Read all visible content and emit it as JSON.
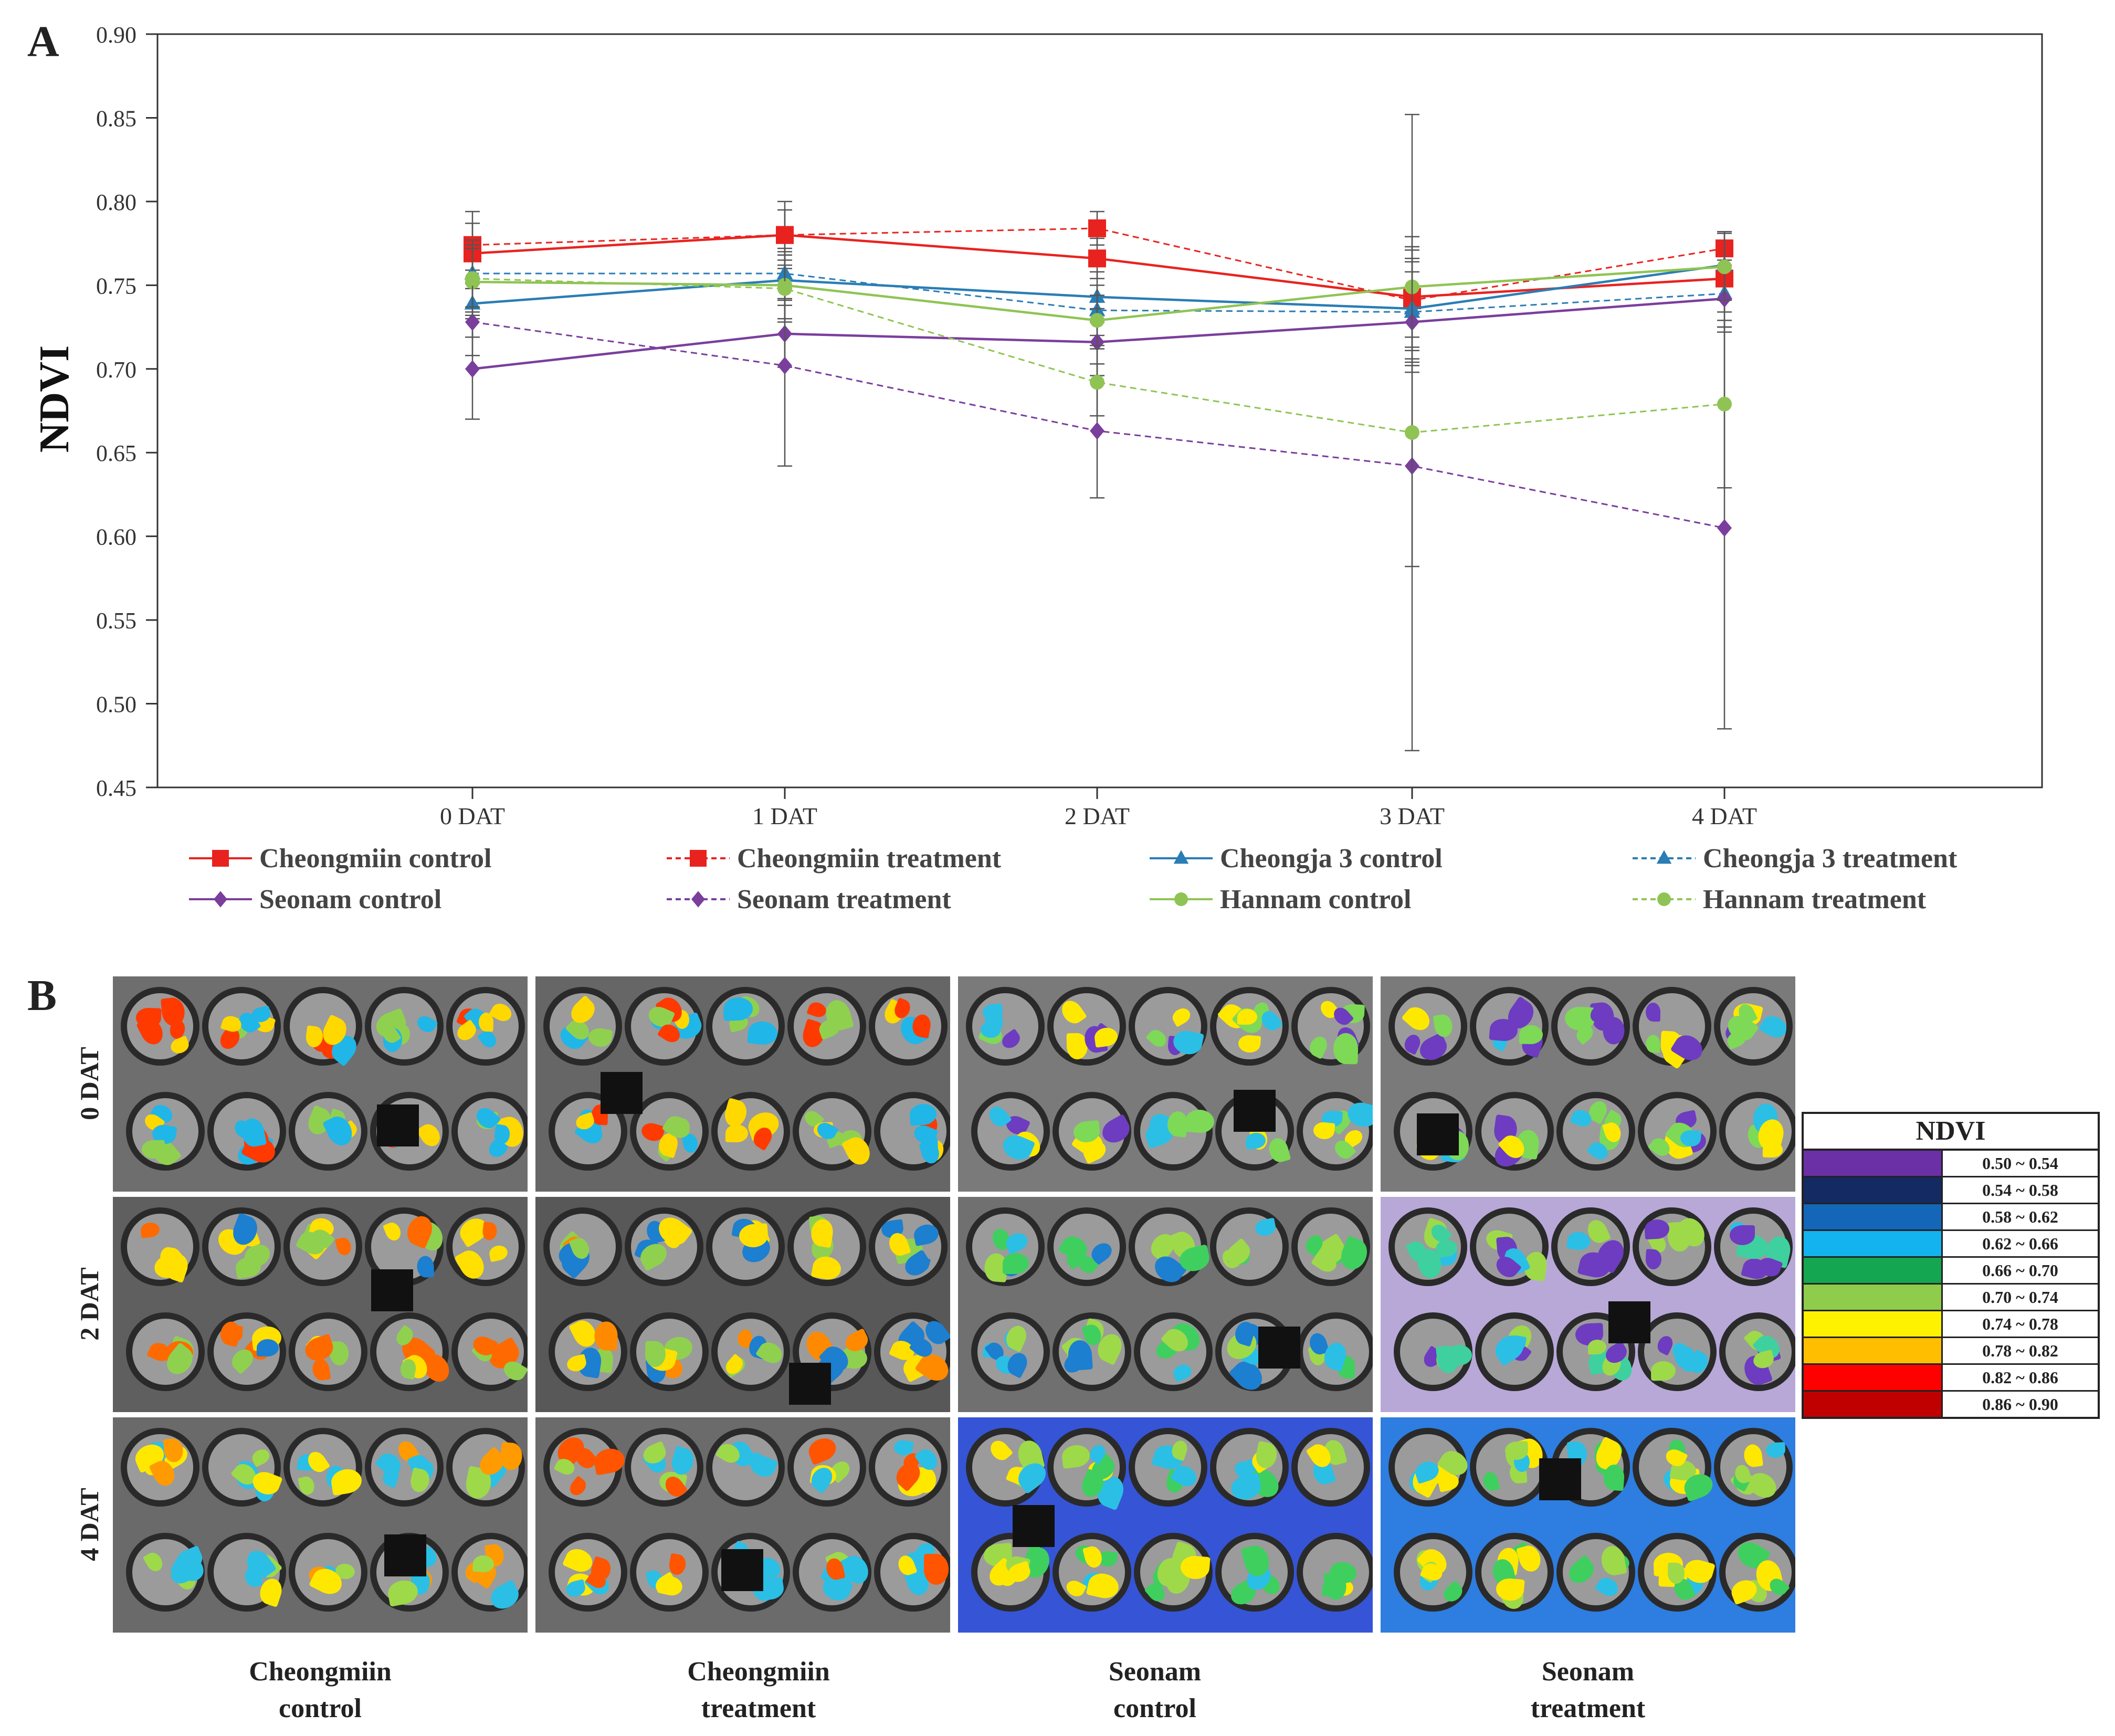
{
  "panels": {
    "a": "A",
    "b": "B"
  },
  "chart_data": {
    "type": "line",
    "title": "",
    "xlabel": "",
    "ylabel": "NDVI",
    "categories": [
      "0 DAT",
      "1 DAT",
      "2 DAT",
      "3 DAT",
      "4 DAT"
    ],
    "ylim": [
      0.45,
      0.9
    ],
    "yticks": [
      "0.45",
      "0.50",
      "0.55",
      "0.60",
      "0.65",
      "0.70",
      "0.75",
      "0.80",
      "0.85",
      "0.90"
    ],
    "series": [
      {
        "name": "Cheongmiin control",
        "color": "#e8231f",
        "dash": false,
        "marker": "square",
        "values": [
          0.769,
          0.78,
          0.766,
          0.743,
          0.754
        ],
        "errors": [
          0.018,
          0.015,
          0.012,
          0.03,
          0.02
        ]
      },
      {
        "name": "Cheongmiin treatment",
        "color": "#e8231f",
        "dash": true,
        "marker": "square",
        "values": [
          0.774,
          0.78,
          0.784,
          0.741,
          0.772
        ],
        "errors": [
          0.02,
          0.02,
          0.01,
          0.03,
          0.01
        ]
      },
      {
        "name": "Cheongja 3 control",
        "color": "#2a7db5",
        "dash": false,
        "marker": "triangle",
        "values": [
          0.739,
          0.753,
          0.743,
          0.736,
          0.762
        ],
        "errors": [
          0.02,
          0.015,
          0.015,
          0.03,
          0.02
        ]
      },
      {
        "name": "Cheongja 3 treatment",
        "color": "#2a7db5",
        "dash": true,
        "marker": "triangle",
        "values": [
          0.757,
          0.757,
          0.735,
          0.734,
          0.745
        ],
        "errors": [
          0.02,
          0.015,
          0.015,
          0.03,
          0.02
        ]
      },
      {
        "name": "Seonam control",
        "color": "#7a3e9d",
        "dash": false,
        "marker": "diamond",
        "values": [
          0.7,
          0.721,
          0.716,
          0.728,
          0.742
        ],
        "errors": [
          0.03,
          0.02,
          0.02,
          0.03,
          0.02
        ]
      },
      {
        "name": "Seonam treatment",
        "color": "#7a3e9d",
        "dash": true,
        "marker": "diamond",
        "values": [
          0.728,
          0.702,
          0.663,
          0.642,
          0.605
        ],
        "errors": [
          0.02,
          0.06,
          0.04,
          0.06,
          0.12
        ]
      },
      {
        "name": "Hannam control",
        "color": "#8fc454",
        "dash": false,
        "marker": "circle",
        "values": [
          0.752,
          0.75,
          0.729,
          0.749,
          0.761
        ],
        "errors": [
          0.02,
          0.02,
          0.015,
          0.03,
          0.02
        ]
      },
      {
        "name": "Hannam treatment",
        "color": "#8fc454",
        "dash": true,
        "marker": "circle",
        "values": [
          0.754,
          0.748,
          0.692,
          0.662,
          0.679
        ],
        "errors": [
          0.02,
          0.02,
          0.02,
          0.19,
          0.05
        ]
      }
    ]
  },
  "figure_b": {
    "row_labels": [
      "0 DAT",
      "2 DAT",
      "4 DAT"
    ],
    "col_labels": [
      {
        "line1": "Cheongmiin",
        "line2": "control"
      },
      {
        "line1": "Cheongmiin",
        "line2": "treatment"
      },
      {
        "line1": "Seonam",
        "line2": "control"
      },
      {
        "line1": "Seonam",
        "line2": "treatment"
      }
    ],
    "scale_title": "NDVI",
    "scale": [
      {
        "range": "0.50 ~ 0.54",
        "color": "#6b2fa6"
      },
      {
        "range": "0.54 ~ 0.58",
        "color": "#132a63"
      },
      {
        "range": "0.58 ~ 0.62",
        "color": "#1466b8"
      },
      {
        "range": "0.62 ~ 0.66",
        "color": "#12b3ee"
      },
      {
        "range": "0.66 ~ 0.70",
        "color": "#14a650"
      },
      {
        "range": "0.70 ~ 0.74",
        "color": "#8fcc4c"
      },
      {
        "range": "0.74 ~ 0.78",
        "color": "#fff200"
      },
      {
        "range": "0.78 ~ 0.82",
        "color": "#ffbf00"
      },
      {
        "range": "0.82 ~ 0.86",
        "color": "#ff0000"
      },
      {
        "range": "0.86 ~ 0.90",
        "color": "#c00000"
      }
    ]
  }
}
